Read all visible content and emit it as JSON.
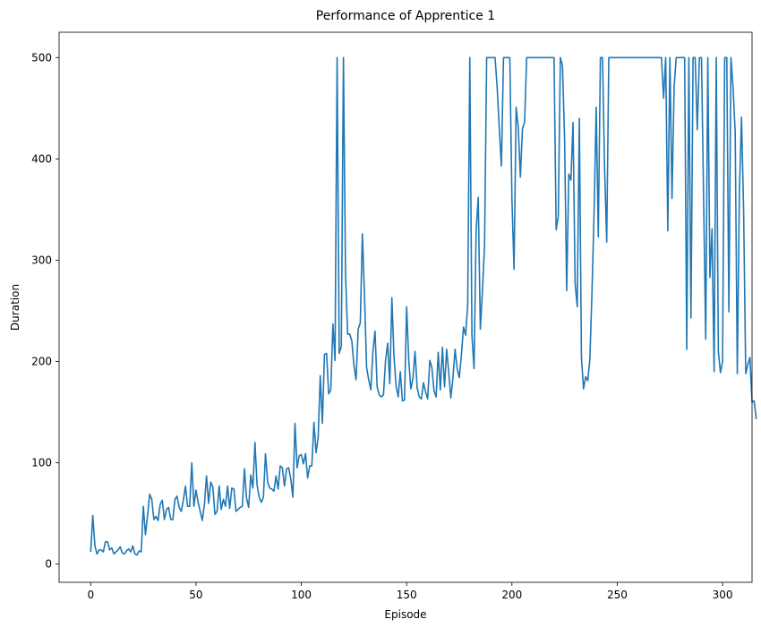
{
  "chart_data": {
    "type": "line",
    "title": "Performance of Apprentice 1",
    "xlabel": "Episode",
    "ylabel": "Duration",
    "xlim": [
      -15,
      314
    ],
    "ylim": [
      -18,
      525
    ],
    "xticks": [
      0,
      50,
      100,
      150,
      200,
      250,
      300
    ],
    "yticks": [
      0,
      100,
      200,
      300,
      400,
      500
    ],
    "grid": false,
    "legend": "none",
    "colors": {
      "line": "#1f77b4",
      "axes": "#000000"
    },
    "series": [
      {
        "values": [
          12,
          48,
          18,
          10,
          14,
          14,
          12,
          22,
          22,
          14,
          16,
          10,
          12,
          14,
          17,
          11,
          10,
          13,
          15,
          12,
          18,
          10,
          9,
          13,
          12,
          57,
          29,
          48,
          69,
          64,
          44,
          47,
          43,
          59,
          63,
          44,
          54,
          56,
          44,
          44,
          64,
          67,
          56,
          52,
          63,
          77,
          57,
          57,
          100,
          57,
          73,
          61,
          52,
          43,
          59,
          87,
          60,
          81,
          76,
          49,
          52,
          77,
          54,
          64,
          57,
          77,
          55,
          75,
          74,
          52,
          54,
          56,
          57,
          94,
          65,
          56,
          88,
          75,
          120,
          78,
          66,
          61,
          66,
          109,
          81,
          75,
          74,
          72,
          87,
          74,
          97,
          95,
          77,
          94,
          95,
          84,
          66,
          139,
          95,
          107,
          108,
          99,
          109,
          85,
          97,
          97,
          140,
          110,
          125,
          186,
          139,
          207,
          208,
          168,
          172,
          237,
          201,
          500,
          208,
          215,
          500,
          285,
          227,
          227,
          220,
          196,
          182,
          232,
          238,
          326,
          266,
          194,
          182,
          172,
          210,
          230,
          175,
          167,
          165,
          167,
          201,
          218,
          178,
          263,
          205,
          176,
          165,
          190,
          161,
          162,
          254,
          202,
          173,
          183,
          210,
          174,
          165,
          163,
          179,
          170,
          163,
          201,
          194,
          171,
          165,
          209,
          172,
          214,
          175,
          212,
          189,
          164,
          184,
          212,
          193,
          184,
          206,
          234,
          226,
          256,
          500,
          226,
          193,
          329,
          362,
          232,
          270,
          314,
          500,
          500,
          500,
          500,
          500,
          470,
          430,
          393,
          500,
          500,
          500,
          500,
          360,
          291,
          451,
          431,
          382,
          430,
          436,
          500,
          500,
          500,
          500,
          500,
          500,
          500,
          500,
          500,
          500,
          500,
          500,
          500,
          500,
          330,
          343,
          500,
          492,
          420,
          270,
          385,
          379,
          436,
          277,
          254,
          440,
          204,
          173,
          185,
          181,
          202,
          268,
          347,
          451,
          323,
          500,
          500,
          390,
          318,
          500,
          500,
          500,
          500,
          500,
          500,
          500,
          500,
          500,
          500,
          500,
          500,
          500,
          500,
          500,
          500,
          500,
          500,
          500,
          500,
          500,
          500,
          500,
          500,
          500,
          500,
          460,
          500,
          329,
          500,
          361,
          471,
          500,
          500,
          500,
          500,
          500,
          212,
          500,
          243,
          500,
          500,
          429,
          500,
          500,
          361,
          222,
          500,
          283,
          331,
          190,
          500,
          210,
          189,
          200,
          500,
          500,
          249,
          500,
          470,
          426,
          188,
          368,
          441,
          349,
          188,
          197,
          204,
          160,
          161,
          143
        ]
      }
    ]
  }
}
